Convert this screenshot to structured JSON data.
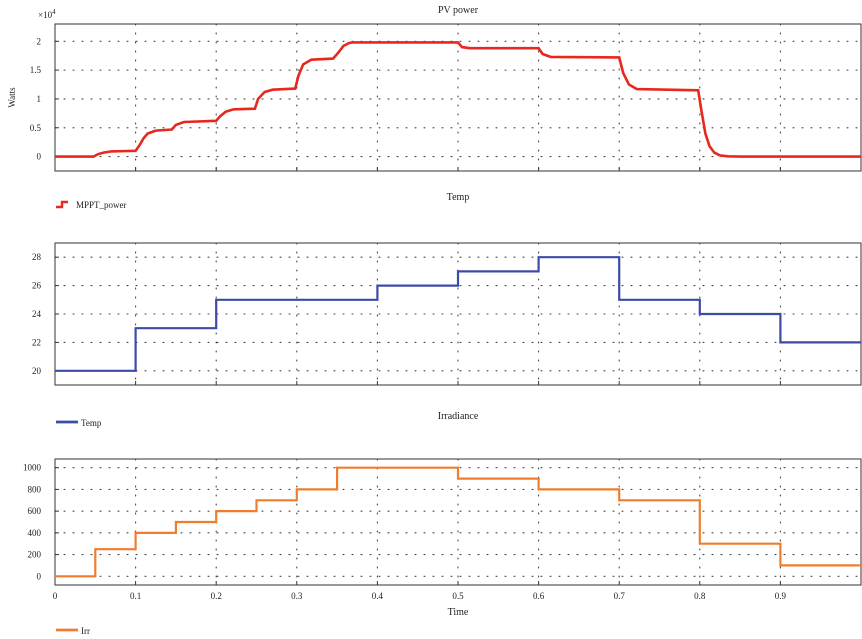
{
  "colors": {
    "power": "#e8281e",
    "temp": "#3c4aa8",
    "irr": "#f07d2e",
    "axis": "#333333",
    "grid": "#444444"
  },
  "chart_data": [
    {
      "type": "line",
      "title": "PV power",
      "ylabel": "Watts",
      "y_multiplier": "×10",
      "y_exponent": "4",
      "xlim": [
        0,
        1
      ],
      "ylim": [
        -0.25,
        2.3
      ],
      "yticks": [
        0,
        0.5,
        1,
        1.5,
        2
      ],
      "ytick_labels": [
        "0",
        "0.5",
        "1",
        "1.5",
        "2"
      ],
      "grid": true,
      "series": [
        {
          "name": "MPPT_power",
          "step": false,
          "x": [
            0,
            0.048,
            0.053,
            0.06,
            0.07,
            0.1,
            0.105,
            0.11,
            0.115,
            0.125,
            0.145,
            0.15,
            0.16,
            0.2,
            0.205,
            0.212,
            0.222,
            0.248,
            0.252,
            0.26,
            0.27,
            0.298,
            0.302,
            0.308,
            0.318,
            0.345,
            0.35,
            0.358,
            0.365,
            0.37,
            0.5,
            0.505,
            0.515,
            0.6,
            0.605,
            0.615,
            0.7,
            0.705,
            0.712,
            0.722,
            0.798,
            0.802,
            0.807,
            0.812,
            0.818,
            0.825,
            0.835,
            0.85,
            1.0
          ],
          "values": [
            0,
            0,
            0.04,
            0.07,
            0.09,
            0.1,
            0.2,
            0.32,
            0.4,
            0.45,
            0.47,
            0.55,
            0.6,
            0.62,
            0.7,
            0.78,
            0.82,
            0.83,
            1.0,
            1.12,
            1.16,
            1.18,
            1.4,
            1.6,
            1.68,
            1.7,
            1.78,
            1.92,
            1.97,
            1.98,
            1.98,
            1.9,
            1.88,
            1.88,
            1.78,
            1.73,
            1.72,
            1.45,
            1.25,
            1.17,
            1.15,
            0.8,
            0.4,
            0.18,
            0.07,
            0.02,
            0.005,
            0,
            0
          ]
        }
      ]
    },
    {
      "type": "line",
      "title": "Temp",
      "xlim": [
        0,
        1
      ],
      "ylim": [
        19.0,
        29.0
      ],
      "yticks": [
        20,
        22,
        24,
        26,
        28
      ],
      "ytick_labels": [
        "20",
        "22",
        "24",
        "26",
        "28"
      ],
      "grid": true,
      "series": [
        {
          "name": "Temp",
          "step": true,
          "x": [
            0,
            0.1,
            0.2,
            0.3,
            0.4,
            0.5,
            0.6,
            0.7,
            0.8,
            0.9,
            1.0
          ],
          "values": [
            20,
            23,
            25,
            25,
            26,
            27,
            28,
            25,
            24,
            22,
            22
          ]
        }
      ]
    },
    {
      "type": "line",
      "title": "Irradiance",
      "xlabel": "Time",
      "xlim": [
        0,
        1
      ],
      "ylim": [
        -80,
        1080
      ],
      "yticks": [
        0,
        200,
        400,
        600,
        800,
        1000
      ],
      "ytick_labels": [
        "0",
        "200",
        "400",
        "600",
        "800",
        "1000"
      ],
      "xticks": [
        0,
        0.1,
        0.2,
        0.3,
        0.4,
        0.5,
        0.6,
        0.7,
        0.8,
        0.9
      ],
      "xtick_labels": [
        "0",
        "0.1",
        "0.2",
        "0.3",
        "0.4",
        "0.5",
        "0.6",
        "0.7",
        "0.8",
        "0.9"
      ],
      "grid": true,
      "series": [
        {
          "name": "Irr",
          "step": true,
          "x": [
            0,
            0.05,
            0.1,
            0.15,
            0.2,
            0.25,
            0.3,
            0.35,
            0.4,
            0.5,
            0.6,
            0.7,
            0.8,
            0.9,
            1.0
          ],
          "values": [
            0,
            250,
            400,
            500,
            600,
            700,
            800,
            1000,
            1000,
            900,
            800,
            700,
            300,
            100,
            100
          ]
        }
      ]
    }
  ]
}
